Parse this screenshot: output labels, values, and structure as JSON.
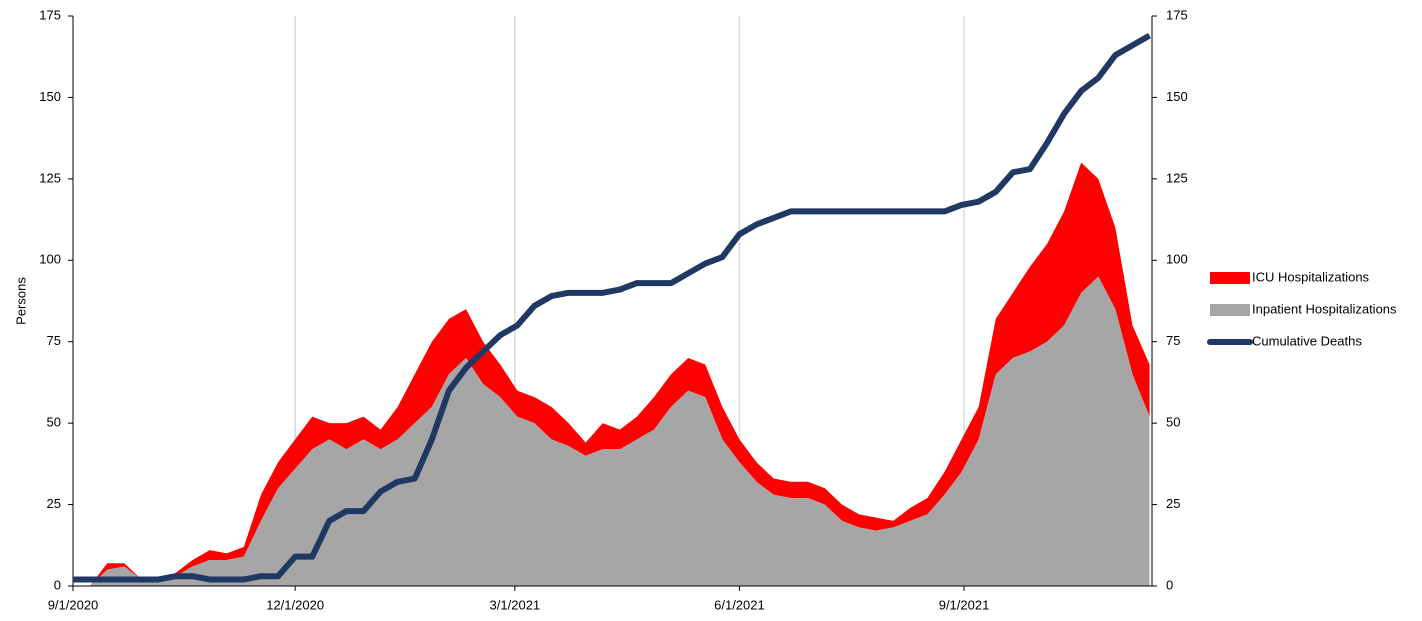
{
  "chart_data": {
    "type": "stacked-area-line",
    "y_label": "Persons",
    "x": [
      "9/1/2020",
      "9/8/2020",
      "9/15/2020",
      "9/22/2020",
      "9/29/2020",
      "10/6/2020",
      "10/13/2020",
      "10/20/2020",
      "10/27/2020",
      "11/3/2020",
      "11/10/2020",
      "11/17/2020",
      "11/24/2020",
      "12/1/2020",
      "12/8/2020",
      "12/15/2020",
      "12/22/2020",
      "12/29/2020",
      "1/5/2021",
      "1/12/2021",
      "1/19/2021",
      "1/26/2021",
      "2/2/2021",
      "2/9/2021",
      "2/16/2021",
      "2/23/2021",
      "3/2/2021",
      "3/9/2021",
      "3/16/2021",
      "3/23/2021",
      "3/30/2021",
      "4/6/2021",
      "4/13/2021",
      "4/20/2021",
      "4/27/2021",
      "5/4/2021",
      "5/11/2021",
      "5/18/2021",
      "5/25/2021",
      "6/1/2021",
      "6/8/2021",
      "6/15/2021",
      "6/22/2021",
      "6/29/2021",
      "7/6/2021",
      "7/13/2021",
      "7/20/2021",
      "7/27/2021",
      "8/3/2021",
      "8/10/2021",
      "8/17/2021",
      "8/24/2021",
      "8/31/2021",
      "9/7/2021",
      "9/14/2021",
      "9/21/2021",
      "9/28/2021",
      "10/5/2021",
      "10/12/2021",
      "10/19/2021",
      "10/26/2021",
      "11/2/2021",
      "11/9/2021",
      "11/16/2021"
    ],
    "xlim": [
      "9/1/2020",
      "11/17/2021"
    ],
    "xticks": [
      "9/1/2020",
      "12/1/2020",
      "3/1/2021",
      "6/1/2021",
      "9/1/2021"
    ],
    "ylim": [
      0,
      175
    ],
    "yticks": [
      0,
      25,
      50,
      75,
      100,
      125,
      150,
      175
    ],
    "y2lim": [
      0,
      175
    ],
    "y2ticks": [
      0,
      25,
      50,
      75,
      100,
      125,
      150,
      175
    ],
    "grid": true,
    "legend": "right",
    "series": [
      {
        "name": "ICU Hospitalizations",
        "color": "#ff0000",
        "stacked": true,
        "values": [
          0,
          0,
          2,
          1,
          0,
          1,
          1,
          2,
          3,
          2,
          3,
          8,
          8,
          9,
          10,
          5,
          8,
          7,
          6,
          10,
          15,
          20,
          17,
          15,
          13,
          10,
          8,
          8,
          10,
          7,
          4,
          8,
          6,
          7,
          10,
          10,
          10,
          10,
          10,
          7,
          6,
          5,
          5,
          5,
          5,
          5,
          4,
          4,
          2,
          4,
          5,
          7,
          10,
          10,
          17,
          20,
          26,
          30,
          35,
          40,
          30,
          25,
          15,
          16
        ]
      },
      {
        "name": "Inpatient Hospitalizations",
        "color": "#a6a6a6",
        "stacked": true,
        "values": [
          0,
          0,
          5,
          6,
          2,
          1,
          3,
          6,
          8,
          8,
          9,
          20,
          30,
          36,
          42,
          45,
          42,
          45,
          42,
          45,
          50,
          55,
          65,
          70,
          62,
          58,
          52,
          50,
          45,
          43,
          40,
          42,
          42,
          45,
          48,
          55,
          60,
          58,
          45,
          38,
          32,
          28,
          27,
          27,
          25,
          20,
          18,
          17,
          18,
          20,
          22,
          28,
          35,
          45,
          65,
          70,
          72,
          75,
          80,
          90,
          95,
          85,
          65,
          52
        ]
      },
      {
        "name": "Cumulative Deaths",
        "color": "#203864",
        "axis": "y2",
        "values": [
          2,
          2,
          2,
          2,
          2,
          2,
          3,
          3,
          2,
          2,
          2,
          3,
          3,
          9,
          9,
          20,
          23,
          23,
          29,
          32,
          33,
          45,
          60,
          67,
          72,
          77,
          80,
          86,
          89,
          90,
          90,
          90,
          91,
          93,
          93,
          93,
          96,
          99,
          101,
          108,
          111,
          113,
          115,
          115,
          115,
          115,
          115,
          115,
          115,
          115,
          115,
          115,
          117,
          118,
          121,
          127,
          128,
          136,
          145,
          152,
          156,
          163,
          166,
          169
        ]
      }
    ]
  }
}
